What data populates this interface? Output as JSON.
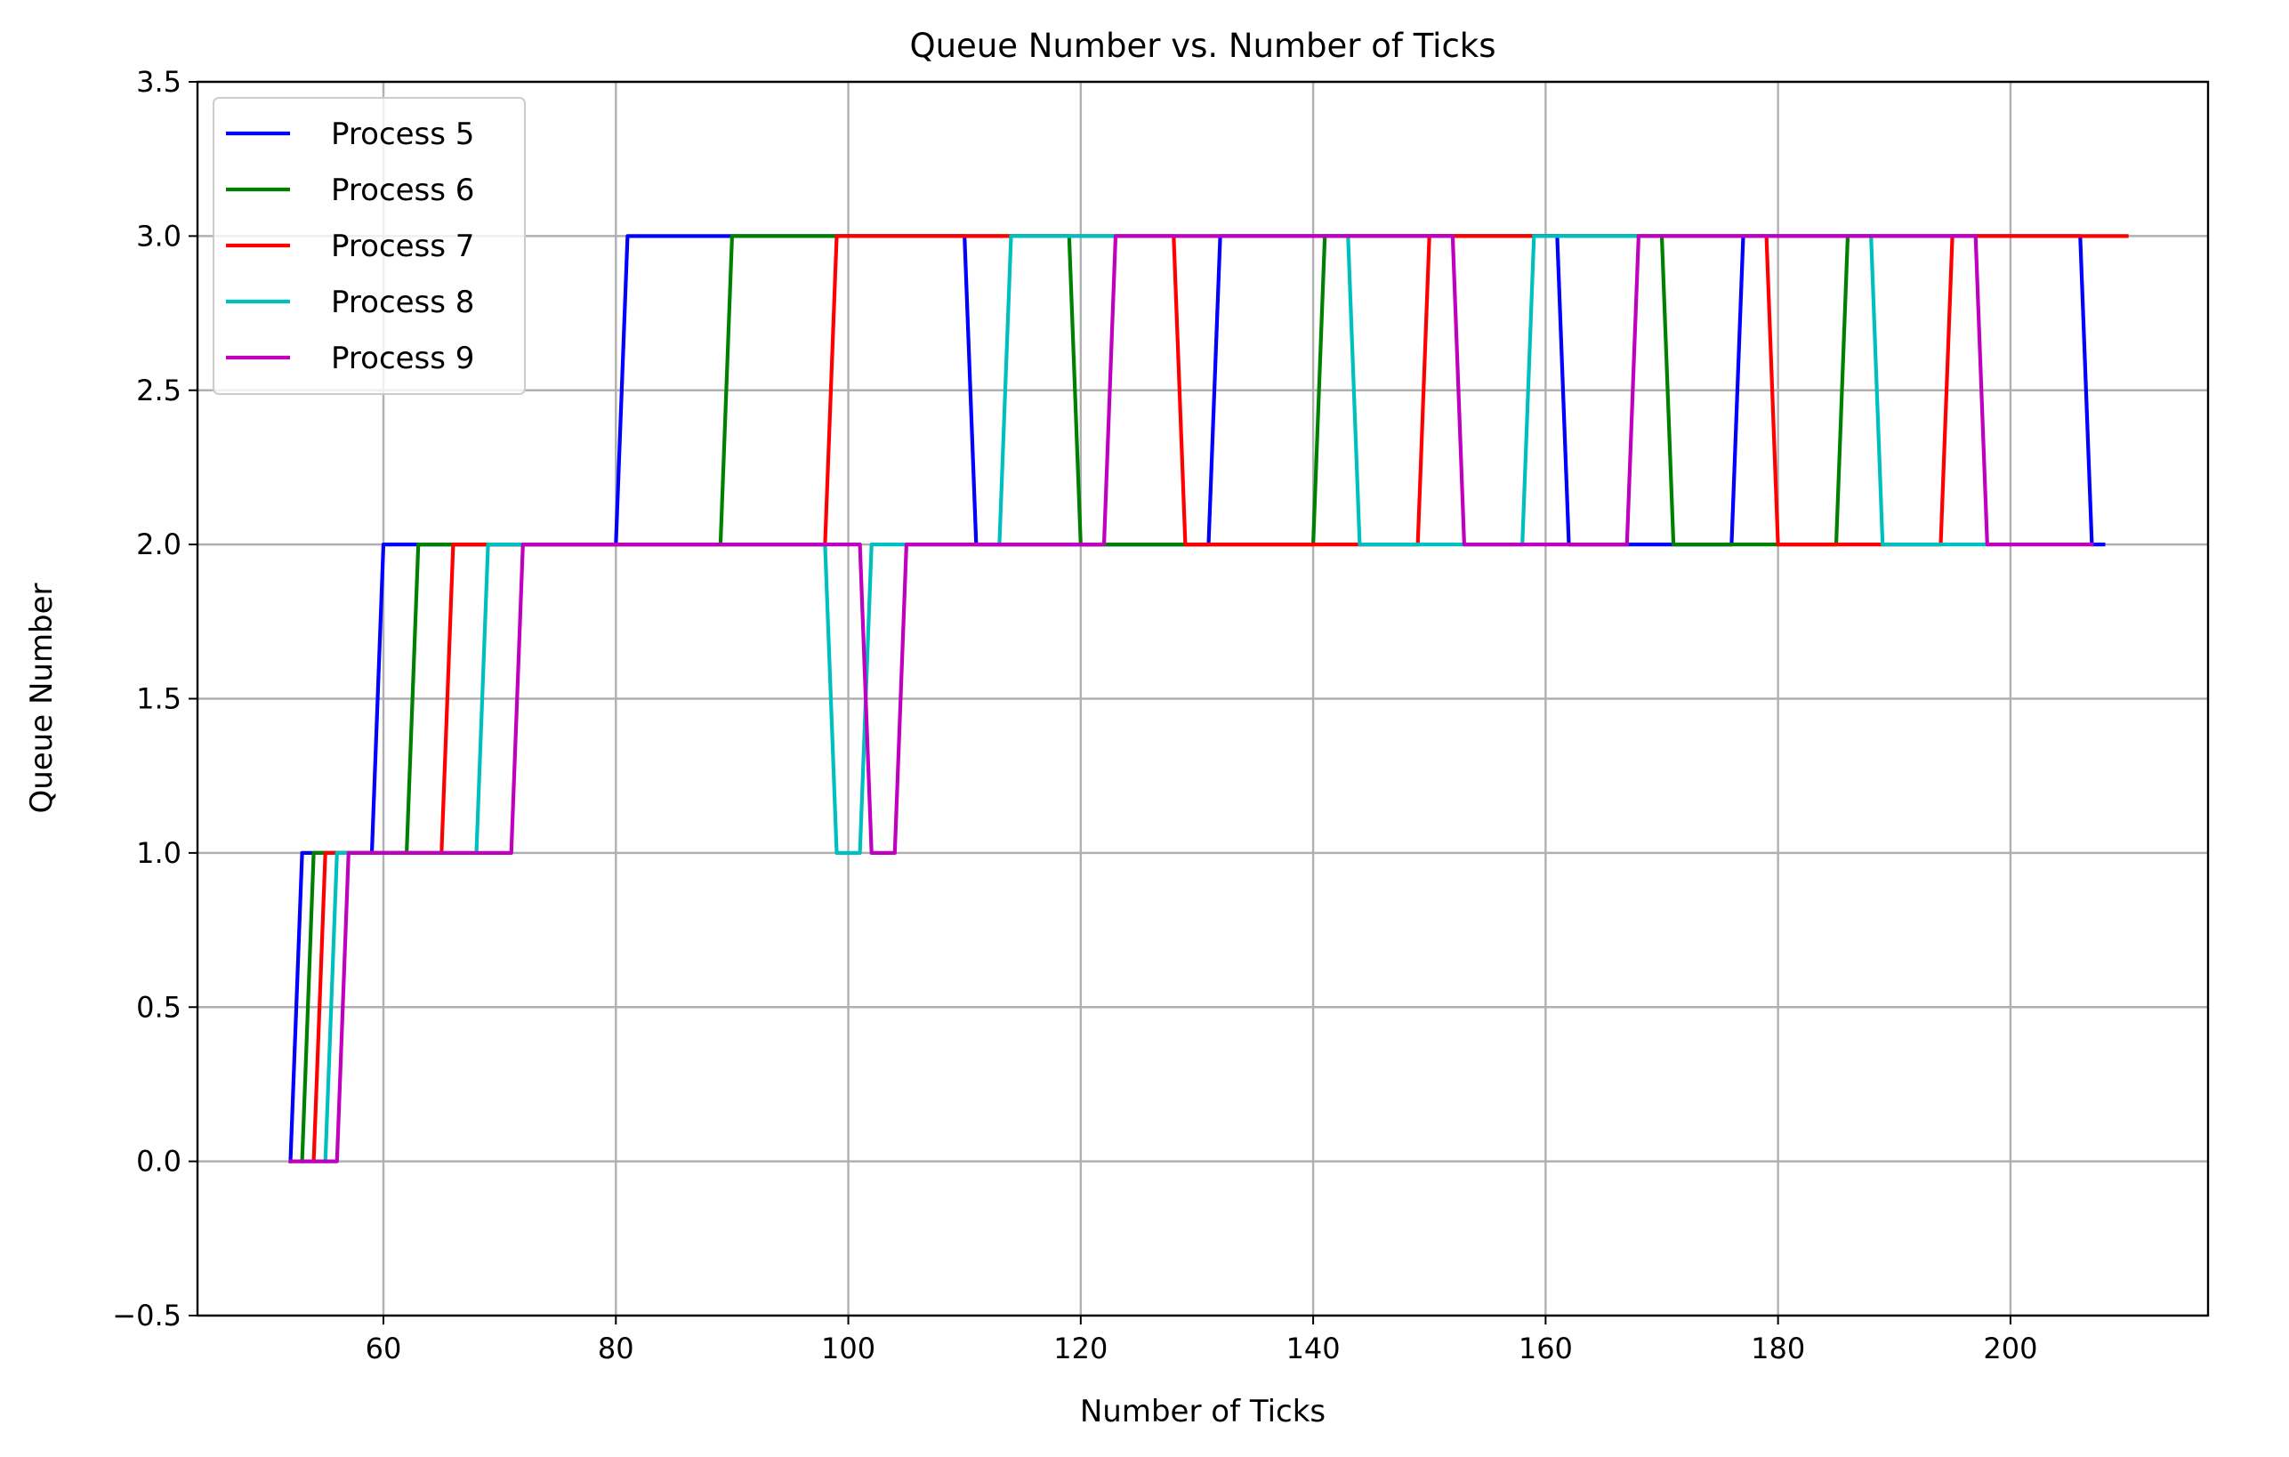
{
  "chart_data": {
    "type": "line",
    "title": "Queue Number vs. Number of Ticks",
    "xlabel": "Number of Ticks",
    "ylabel": "Queue Number",
    "xlim": [
      44,
      217
    ],
    "ylim": [
      -0.5,
      3.5
    ],
    "xticks": [
      60,
      80,
      100,
      120,
      140,
      160,
      180,
      200
    ],
    "xtick_labels": [
      "60",
      "80",
      "100",
      "120",
      "140",
      "160",
      "180",
      "200"
    ],
    "yticks": [
      -0.5,
      0.0,
      0.5,
      1.0,
      1.5,
      2.0,
      2.5,
      3.0,
      3.5
    ],
    "ytick_labels": [
      "−0.5",
      "0.0",
      "0.5",
      "1.0",
      "1.5",
      "2.0",
      "2.5",
      "3.0",
      "3.5"
    ],
    "grid": true,
    "legend_position": "upper left",
    "series": [
      {
        "name": "Process 5",
        "color": "#0000ff",
        "points": [
          [
            52,
            0
          ],
          [
            53,
            1
          ],
          [
            59,
            1
          ],
          [
            60,
            2
          ],
          [
            80,
            2
          ],
          [
            81,
            3
          ],
          [
            110,
            3
          ],
          [
            111,
            2
          ],
          [
            131,
            2
          ],
          [
            132,
            3
          ],
          [
            161,
            3
          ],
          [
            162,
            2
          ],
          [
            176,
            2
          ],
          [
            177,
            3
          ],
          [
            206,
            3
          ],
          [
            207,
            2
          ],
          [
            208,
            2
          ]
        ]
      },
      {
        "name": "Process 6",
        "color": "#008000",
        "points": [
          [
            53,
            0
          ],
          [
            54,
            1
          ],
          [
            62,
            1
          ],
          [
            63,
            2
          ],
          [
            89,
            2
          ],
          [
            90,
            3
          ],
          [
            119,
            3
          ],
          [
            120,
            2
          ],
          [
            140,
            2
          ],
          [
            141,
            3
          ],
          [
            170,
            3
          ],
          [
            171,
            2
          ],
          [
            185,
            2
          ],
          [
            186,
            3
          ],
          [
            188,
            3
          ]
        ]
      },
      {
        "name": "Process 7",
        "color": "#ff0000",
        "points": [
          [
            54,
            0
          ],
          [
            55,
            1
          ],
          [
            65,
            1
          ],
          [
            66,
            2
          ],
          [
            98,
            2
          ],
          [
            99,
            3
          ],
          [
            128,
            3
          ],
          [
            129,
            2
          ],
          [
            149,
            2
          ],
          [
            150,
            3
          ],
          [
            179,
            3
          ],
          [
            180,
            2
          ],
          [
            194,
            2
          ],
          [
            195,
            3
          ],
          [
            210,
            3
          ]
        ]
      },
      {
        "name": "Process 8",
        "color": "#00bfbf",
        "points": [
          [
            55,
            0
          ],
          [
            56,
            1
          ],
          [
            68,
            1
          ],
          [
            69,
            2
          ],
          [
            98,
            2
          ],
          [
            99,
            1
          ],
          [
            101,
            1
          ],
          [
            102,
            2
          ],
          [
            113,
            2
          ],
          [
            114,
            3
          ],
          [
            143,
            3
          ],
          [
            144,
            2
          ],
          [
            158,
            2
          ],
          [
            159,
            3
          ],
          [
            188,
            3
          ],
          [
            189,
            2
          ],
          [
            198,
            2
          ]
        ]
      },
      {
        "name": "Process 9",
        "color": "#bf00bf",
        "points": [
          [
            52,
            0
          ],
          [
            56,
            0
          ],
          [
            57,
            1
          ],
          [
            71,
            1
          ],
          [
            72,
            2
          ],
          [
            101,
            2
          ],
          [
            102,
            1
          ],
          [
            104,
            1
          ],
          [
            105,
            2
          ],
          [
            122,
            2
          ],
          [
            123,
            3
          ],
          [
            152,
            3
          ],
          [
            153,
            2
          ],
          [
            167,
            2
          ],
          [
            168,
            3
          ],
          [
            197,
            3
          ],
          [
            198,
            2
          ],
          [
            207,
            2
          ]
        ]
      }
    ]
  }
}
